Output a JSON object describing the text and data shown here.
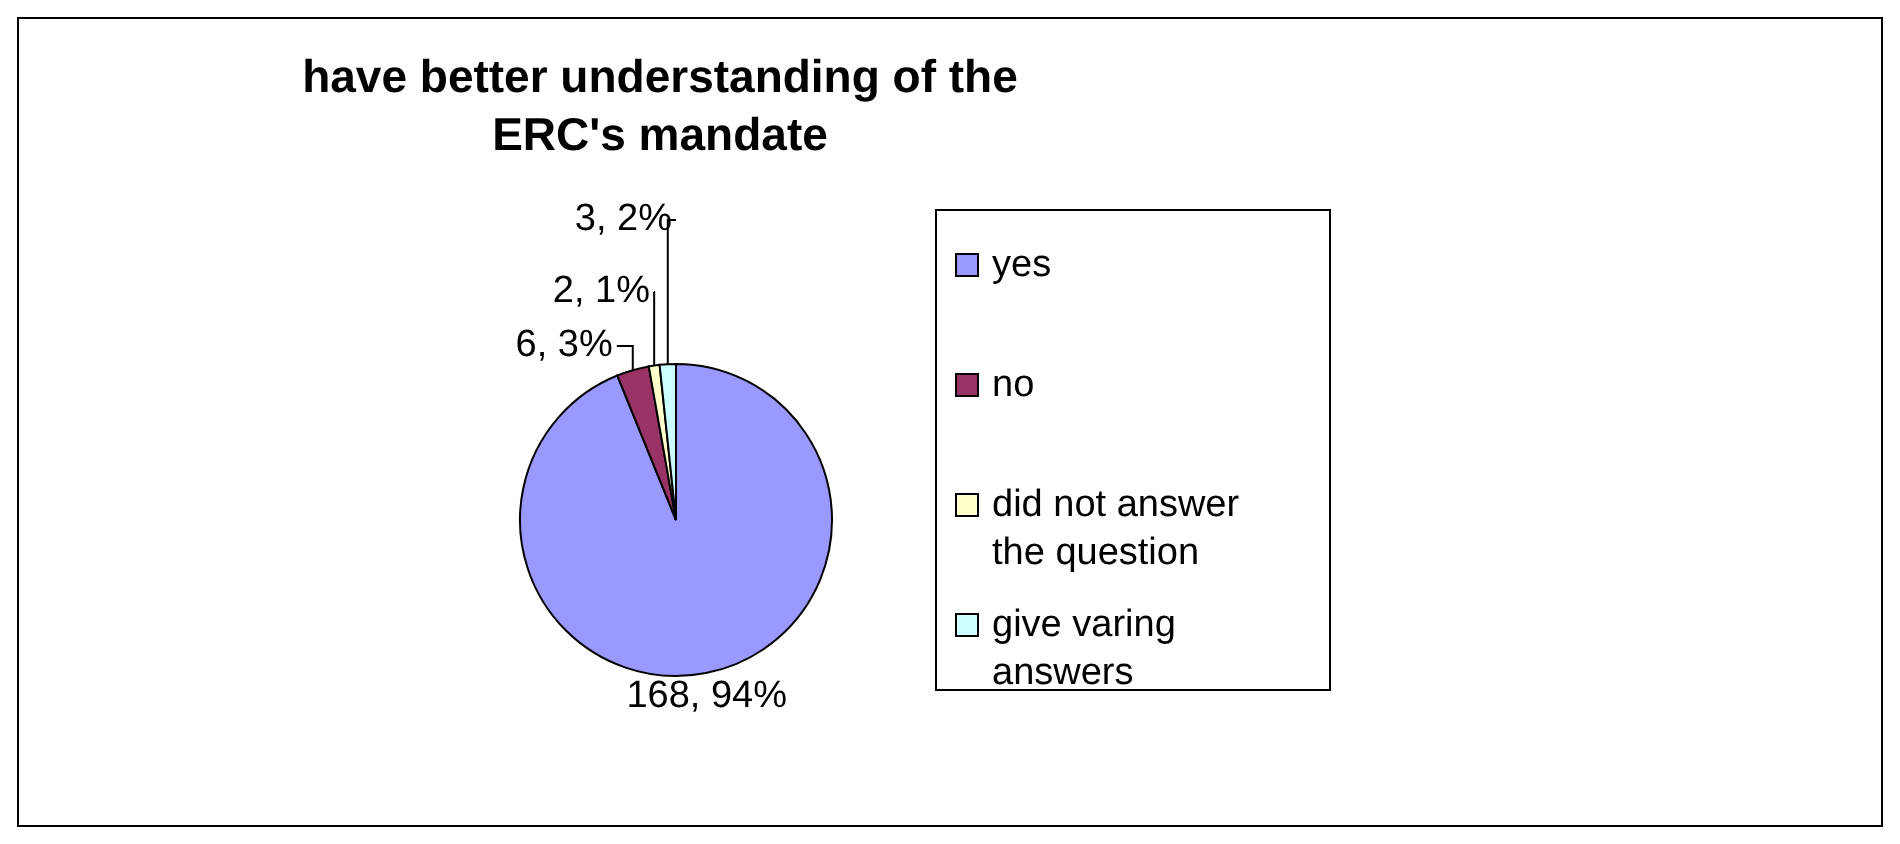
{
  "chart_data": {
    "type": "pie",
    "title": "have better understanding of the ERC's mandate",
    "categories": [
      "yes",
      "no",
      "did not answer the question",
      "give varing answers"
    ],
    "values": [
      168,
      6,
      2,
      3
    ],
    "value_labels": [
      "168, 94%",
      "6, 3%",
      "2, 1%",
      "3, 2%"
    ],
    "colors": [
      "#9999ff",
      "#993366",
      "#ffffcc",
      "#ccffff"
    ],
    "legend": "right"
  }
}
